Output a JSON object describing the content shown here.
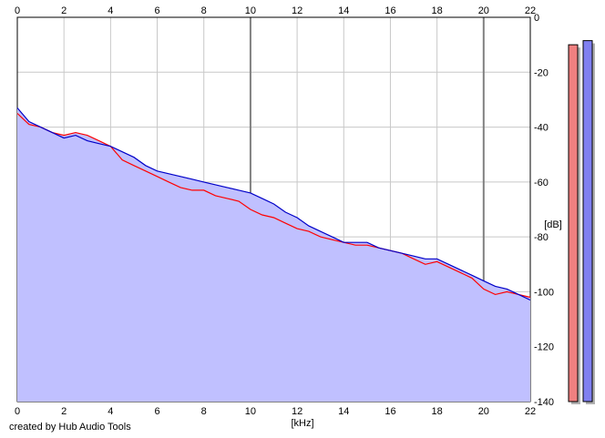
{
  "credit_text": "created by Hub Audio Tools",
  "chart_data": {
    "type": "line",
    "xlabel": "[kHz]",
    "ylabel": "[dB]",
    "xlim": [
      0,
      22
    ],
    "ylim": [
      -140,
      0
    ],
    "x_ticks": [
      "0",
      "2",
      "4",
      "6",
      "8",
      "10",
      "12",
      "14",
      "16",
      "18",
      "20",
      "22"
    ],
    "y_ticks": [
      "0",
      "-20",
      "-40",
      "-60",
      "-80",
      "-100",
      "-120",
      "-140"
    ],
    "grid": true,
    "colors": {
      "background": "#ffffff",
      "fill": "#c0c0ff",
      "grid_minor": "#c8c8c8",
      "grid_major": "#808080",
      "left_channel": "#ff0000",
      "right_channel": "#0000c8",
      "meter_left_fill": "#f08080",
      "meter_right_fill": "#8080f0"
    },
    "series": [
      {
        "channel": "left",
        "color": "#ff0000",
        "x": [
          0,
          0.5,
          1,
          1.5,
          2,
          2.5,
          3,
          3.5,
          4,
          4.5,
          5,
          5.5,
          6,
          6.5,
          7,
          7.5,
          8,
          8.5,
          9,
          9.5,
          10,
          10.5,
          11,
          11.5,
          12,
          12.5,
          13,
          13.5,
          14,
          14.5,
          15,
          15.5,
          16,
          16.5,
          17,
          17.5,
          18,
          18.5,
          19,
          19.5,
          20,
          20.5,
          21,
          21.5,
          22
        ],
        "values": [
          -35,
          -39,
          -40,
          -42,
          -43,
          -42,
          -43,
          -45,
          -47,
          -52,
          -54,
          -56,
          -58,
          -60,
          -62,
          -63,
          -63,
          -65,
          -66,
          -67,
          -70,
          -72,
          -73,
          -75,
          -77,
          -78,
          -80,
          -81,
          -82,
          -83,
          -83,
          -84,
          -85,
          -86,
          -88,
          -90,
          -89,
          -91,
          -93,
          -95,
          -99,
          -101,
          -100,
          -101,
          -102
        ]
      },
      {
        "channel": "right",
        "color": "#0000c8",
        "x": [
          0,
          0.5,
          1,
          1.5,
          2,
          2.5,
          3,
          3.5,
          4,
          4.5,
          5,
          5.5,
          6,
          6.5,
          7,
          7.5,
          8,
          8.5,
          9,
          9.5,
          10,
          10.5,
          11,
          11.5,
          12,
          12.5,
          13,
          13.5,
          14,
          14.5,
          15,
          15.5,
          16,
          16.5,
          17,
          17.5,
          18,
          18.5,
          19,
          19.5,
          20,
          20.5,
          21,
          21.5,
          22
        ],
        "values": [
          -33,
          -38,
          -40,
          -42,
          -44,
          -43,
          -45,
          -46,
          -47,
          -49,
          -51,
          -54,
          -56,
          -57,
          -58,
          -59,
          -60,
          -61,
          -62,
          -63,
          -64,
          -66,
          -68,
          -71,
          -73,
          -76,
          -78,
          -80,
          -82,
          -82,
          -82,
          -84,
          -85,
          -86,
          -87,
          -88,
          -88,
          -90,
          -92,
          -94,
          -96,
          -98,
          -99,
          -101,
          -103
        ]
      }
    ],
    "level_meters": [
      {
        "channel": "left",
        "level_db": -10,
        "color": "#f08080"
      },
      {
        "channel": "right",
        "level_db": -8.5,
        "color": "#8080f0"
      }
    ]
  }
}
